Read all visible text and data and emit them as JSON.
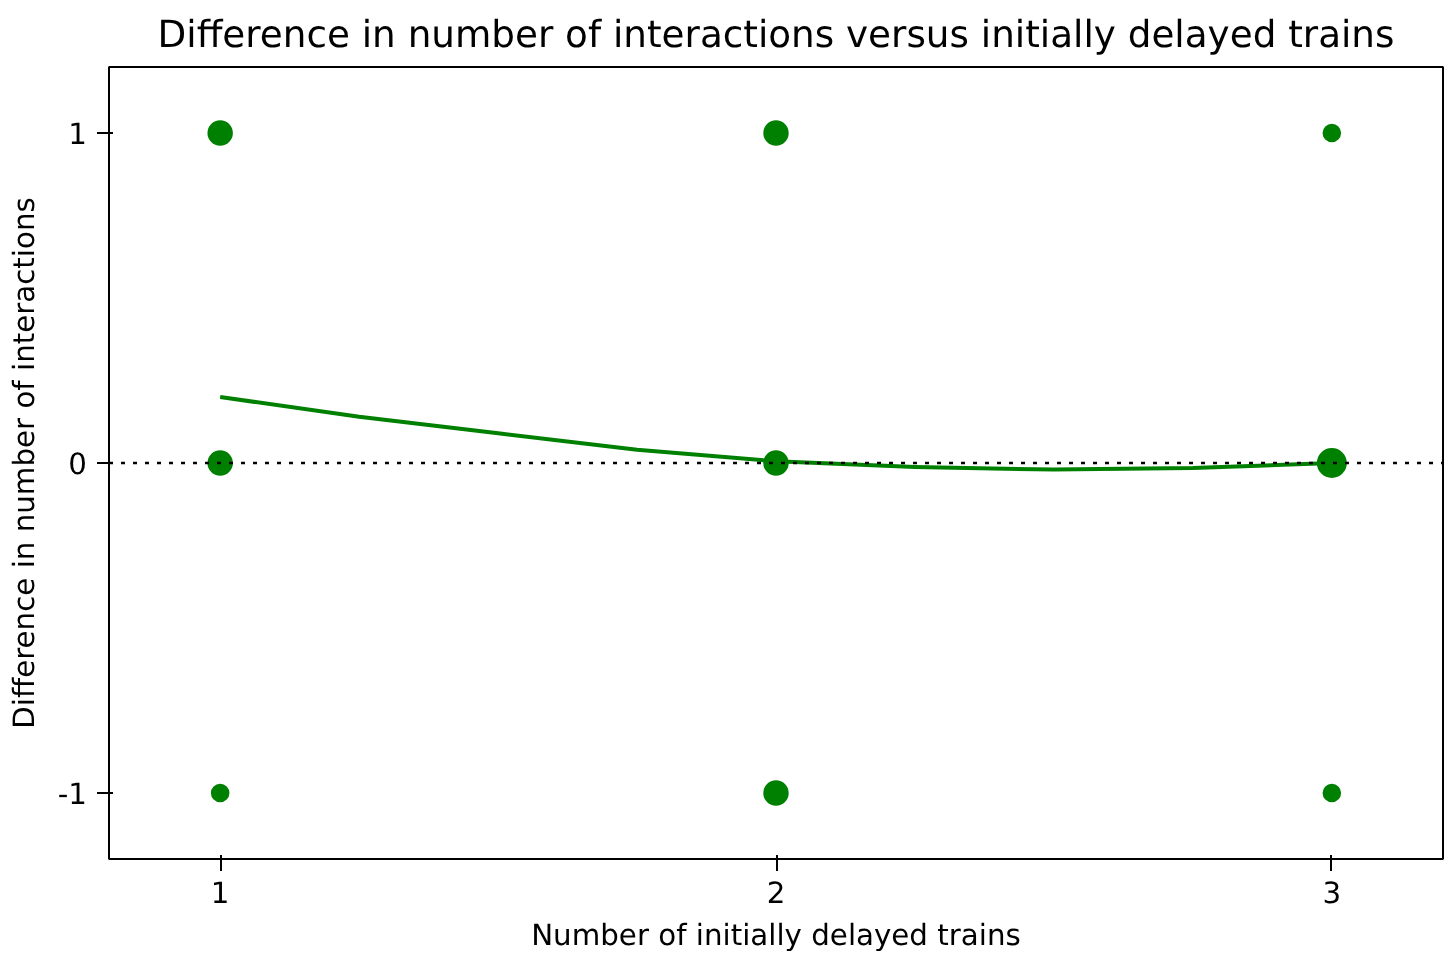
{
  "chart_data": {
    "type": "bubble",
    "title": "Difference in number of interactions versus initially delayed trains",
    "xlabel": "Number of initially delayed trains",
    "ylabel": "Difference in number of interactions",
    "series": [
      {
        "color": "#008000",
        "x": [
          1,
          1,
          1,
          2,
          2,
          2,
          3,
          3,
          3
        ],
        "values": [
          1,
          0,
          -1,
          1,
          0,
          -1,
          1,
          0,
          -1
        ],
        "sizes": [
          0.7,
          0.7,
          0.35,
          0.7,
          0.7,
          0.7,
          0.35,
          1,
          0.35
        ]
      },
      {
        "type": "line",
        "color": "#008000",
        "x": [
          1,
          1.25,
          1.5,
          1.75,
          2,
          2.25,
          2.5,
          2.75,
          3
        ],
        "values": [
          0.2,
          0.14,
          0.09,
          0.04,
          0.005,
          -0.012,
          -0.02,
          -0.015,
          0.0
        ]
      }
    ],
    "ref_lines": [
      {
        "axis": "y",
        "value": 0,
        "color": "#000000",
        "line_style": "dotted"
      }
    ],
    "xlim": [
      0.8,
      3.2
    ],
    "ylim": [
      -1.2,
      1.2
    ],
    "xticks": [
      1,
      2,
      3
    ],
    "yticks": [
      1,
      0,
      -1
    ],
    "grid": false
  }
}
